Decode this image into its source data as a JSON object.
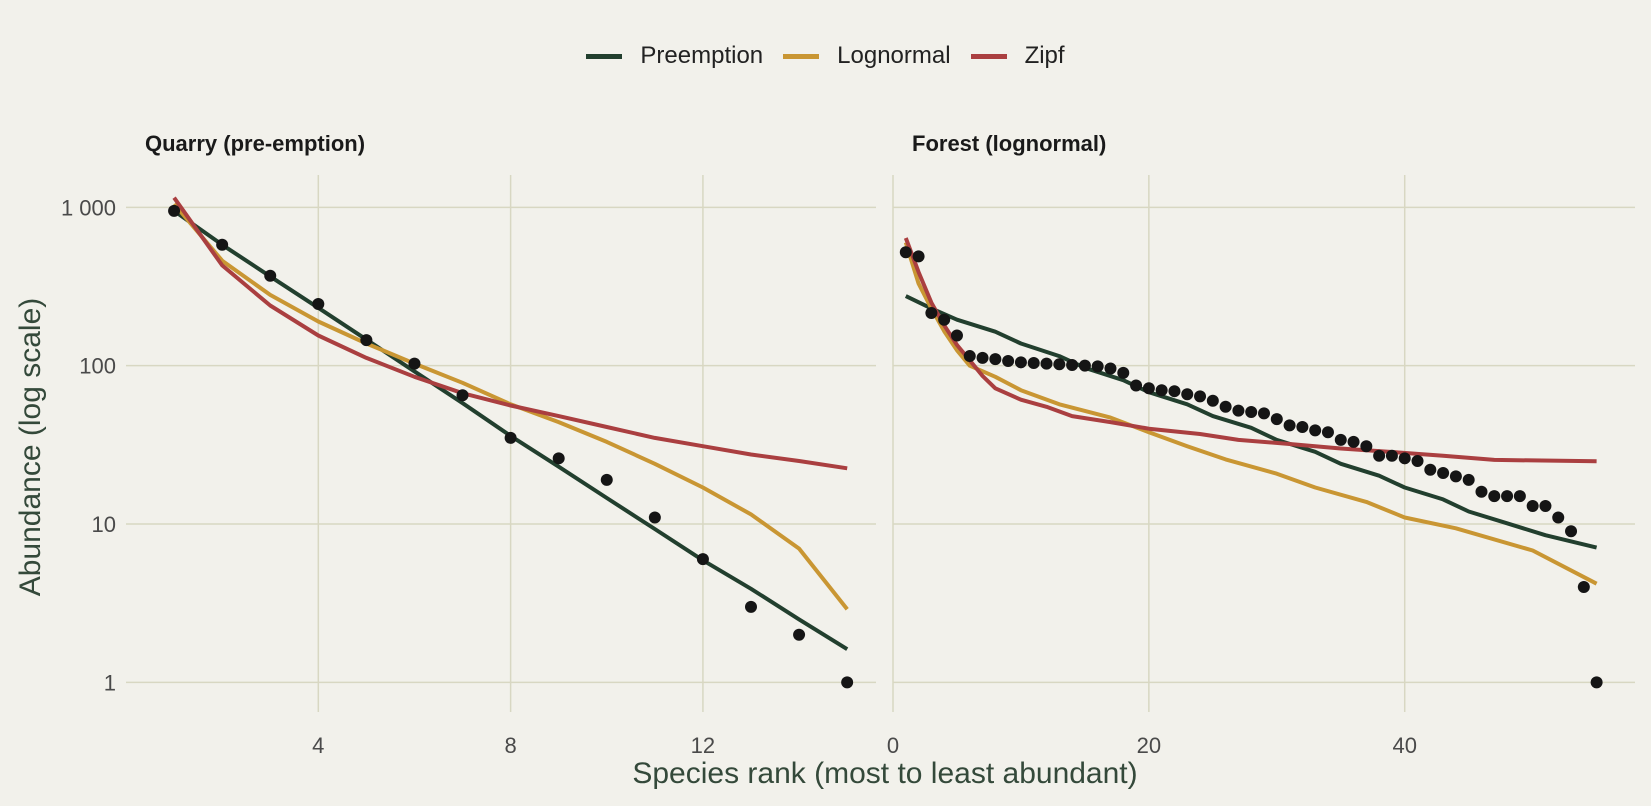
{
  "legend": {
    "items": [
      {
        "label": "Preemption",
        "color": "#223f2e"
      },
      {
        "label": "Lognormal",
        "color": "#c99633"
      },
      {
        "label": "Zipf",
        "color": "#aa3f40"
      }
    ]
  },
  "colors": {
    "background": "#f2f1eb",
    "grid": "#d8d7c2",
    "points": "#151515"
  },
  "axes": {
    "ylabel": "Abundance (log scale)",
    "xlabel": "Species rank (most to least abundant)",
    "yscale": "log",
    "yticks": [
      1,
      10,
      100,
      1000
    ],
    "ytick_labels": [
      "1",
      "10",
      "100",
      "1 000"
    ]
  },
  "chart_data": [
    {
      "type": "scatter",
      "title": "Quarry (pre-emption)",
      "xlim": [
        0,
        15.6
      ],
      "ylim": [
        0.65,
        1600
      ],
      "xticks": [
        4,
        8,
        12
      ],
      "x": [
        1,
        2,
        3,
        4,
        5,
        6,
        7,
        8,
        9,
        10,
        11,
        12,
        13,
        14,
        15
      ],
      "observed": [
        950,
        580,
        370,
        245,
        145,
        103,
        65,
        35,
        26,
        19,
        11,
        6,
        3,
        2,
        1
      ],
      "series": [
        {
          "name": "Preemption",
          "values": [
            950,
            580,
            366,
            232,
            146,
            92,
            58,
            36,
            23,
            14.6,
            9.3,
            5.9,
            3.9,
            2.5,
            1.62
          ]
        },
        {
          "name": "Lognormal",
          "values": [
            1050,
            460,
            280,
            190,
            138,
            103,
            78,
            57,
            44,
            33,
            24,
            17,
            11.5,
            7,
            2.9
          ]
        },
        {
          "name": "Zipf",
          "values": [
            1150,
            430,
            240,
            155,
            112,
            85,
            67,
            56,
            48,
            41,
            35,
            31,
            27.5,
            25,
            22.5
          ]
        }
      ]
    },
    {
      "type": "scatter",
      "title": "Forest (lognormal)",
      "xlim": [
        0,
        58
      ],
      "ylim": [
        0.65,
        1600
      ],
      "xticks": [
        0,
        20,
        40
      ],
      "x": [
        1,
        2,
        3,
        4,
        5,
        6,
        7,
        8,
        9,
        10,
        11,
        12,
        13,
        14,
        15,
        16,
        17,
        18,
        19,
        20,
        21,
        22,
        23,
        24,
        25,
        26,
        27,
        28,
        29,
        30,
        31,
        32,
        33,
        34,
        35,
        36,
        37,
        38,
        39,
        40,
        41,
        42,
        43,
        44,
        45,
        46,
        47,
        48,
        49,
        50,
        51,
        52,
        53,
        54,
        55
      ],
      "observed": [
        520,
        490,
        215,
        195,
        155,
        115,
        112,
        110,
        107,
        105,
        104,
        103,
        102,
        101,
        100,
        99,
        96,
        90,
        75,
        72,
        70,
        69,
        66,
        64,
        60,
        55,
        52,
        51,
        50,
        46,
        42,
        41,
        39,
        38,
        34,
        33,
        31,
        27,
        27,
        26,
        25,
        22,
        21,
        20,
        19,
        16,
        15,
        15,
        15,
        13,
        13,
        11,
        9,
        4,
        1
      ],
      "series": [
        {
          "name": "Preemption",
          "values": [
            275,
            230,
            195,
            164,
            138,
            115,
            97,
            81,
            68,
            57,
            48,
            40.5,
            34,
            28.6,
            24,
            20.2,
            17,
            14.3,
            12,
            10.1,
            8.5,
            7.1
          ]
        },
        {
          "name": "Lognormal",
          "values": [
            600,
            330,
            230,
            165,
            125,
            100,
            85,
            70,
            57,
            47,
            38,
            31,
            25.6,
            20.8,
            17,
            13.8,
            11,
            9.4,
            6.8,
            4.2
          ]
        },
        {
          "name": "Zipf",
          "values": [
            640,
            390,
            250,
            180,
            135,
            108,
            86,
            72,
            61,
            55,
            48,
            44,
            40,
            37,
            34,
            32,
            30,
            28.5,
            27,
            25.4,
            24.9
          ]
        }
      ],
      "series_x": {
        "Preemption": [
          1,
          3,
          5,
          8,
          10,
          13,
          15,
          18,
          20,
          23,
          25,
          28,
          30,
          33,
          35,
          38,
          40,
          43,
          45,
          48,
          51,
          55
        ],
        "Lognormal": [
          1,
          2,
          3,
          4,
          5,
          6,
          8,
          10,
          13,
          17,
          20,
          23,
          26,
          30,
          33,
          37,
          40,
          44,
          50,
          55
        ],
        "Zipf": [
          1,
          2,
          3,
          4,
          5,
          6,
          7,
          8,
          10,
          12,
          14,
          17,
          20,
          24,
          27,
          31,
          35,
          39,
          43,
          47,
          55
        ]
      }
    }
  ]
}
